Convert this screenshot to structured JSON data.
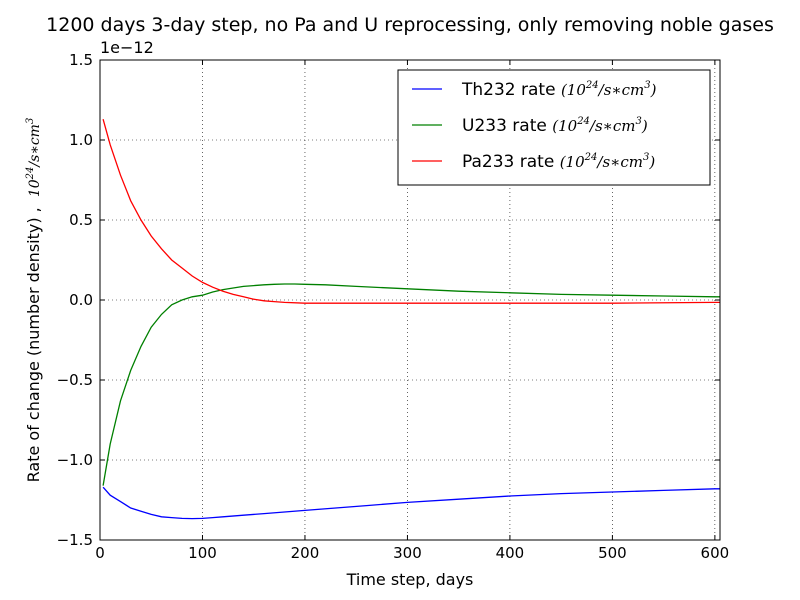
{
  "chart_data": {
    "type": "line",
    "title": "1200 days 3-day step, no Pa and U reprocessing, only removing noble gases",
    "xlabel": "Time step, days",
    "ylabel_text": "Rate of change (number density) ,",
    "ylabel_unit": "10^24/s*cm^3",
    "offset_label": "1e−12",
    "xlim": [
      0,
      605
    ],
    "ylim": [
      -1.5,
      1.5
    ],
    "x_ticks": [
      0,
      100,
      200,
      300,
      400,
      500,
      600
    ],
    "y_ticks": [
      -1.5,
      -1.0,
      -0.5,
      0.0,
      0.5,
      1.0,
      1.5
    ],
    "x_tick_labels": [
      "0",
      "100",
      "200",
      "300",
      "400",
      "500",
      "600"
    ],
    "y_tick_labels": [
      "−1.5",
      "−1.0",
      "−0.5",
      "0.0",
      "0.5",
      "1.0",
      "1.5"
    ],
    "grid": true,
    "legend_position": "top-right",
    "series": [
      {
        "name": "Th232 rate",
        "unit": "(10^24/s*cm^3)",
        "color": "#0000ff",
        "x": [
          3,
          10,
          20,
          30,
          40,
          50,
          60,
          70,
          80,
          90,
          100,
          110,
          120,
          140,
          160,
          180,
          200,
          230,
          260,
          300,
          350,
          400,
          450,
          500,
          550,
          600,
          605
        ],
        "y": [
          -1.17,
          -1.22,
          -1.26,
          -1.3,
          -1.32,
          -1.34,
          -1.355,
          -1.36,
          -1.365,
          -1.366,
          -1.365,
          -1.36,
          -1.355,
          -1.345,
          -1.335,
          -1.325,
          -1.315,
          -1.3,
          -1.285,
          -1.265,
          -1.245,
          -1.225,
          -1.21,
          -1.2,
          -1.19,
          -1.18,
          -1.18
        ]
      },
      {
        "name": "U233 rate",
        "unit": "(10^24/s*cm^3)",
        "color": "#008000",
        "x": [
          3,
          10,
          20,
          30,
          40,
          50,
          60,
          70,
          80,
          90,
          100,
          110,
          120,
          130,
          140,
          150,
          160,
          170,
          180,
          190,
          200,
          220,
          250,
          300,
          350,
          400,
          450,
          500,
          550,
          600,
          605
        ],
        "y": [
          -1.16,
          -0.9,
          -0.63,
          -0.44,
          -0.29,
          -0.17,
          -0.09,
          -0.03,
          0.0,
          0.02,
          0.03,
          0.05,
          0.065,
          0.075,
          0.085,
          0.09,
          0.095,
          0.098,
          0.1,
          0.1,
          0.098,
          0.095,
          0.085,
          0.07,
          0.055,
          0.045,
          0.035,
          0.03,
          0.025,
          0.02,
          0.02
        ]
      },
      {
        "name": "Pa233 rate",
        "unit": "(10^24/s*cm^3)",
        "color": "#ff0000",
        "x": [
          3,
          10,
          20,
          30,
          40,
          50,
          60,
          70,
          80,
          90,
          100,
          110,
          120,
          130,
          140,
          150,
          160,
          170,
          180,
          200,
          250,
          300,
          400,
          500,
          600,
          605
        ],
        "y": [
          1.13,
          0.97,
          0.78,
          0.62,
          0.5,
          0.4,
          0.32,
          0.25,
          0.2,
          0.15,
          0.11,
          0.08,
          0.055,
          0.035,
          0.02,
          0.005,
          -0.005,
          -0.01,
          -0.015,
          -0.02,
          -0.02,
          -0.02,
          -0.02,
          -0.02,
          -0.015,
          -0.015
        ]
      }
    ]
  },
  "colors": {
    "axes": "#000000",
    "grid": "#000000",
    "background": "#ffffff"
  }
}
